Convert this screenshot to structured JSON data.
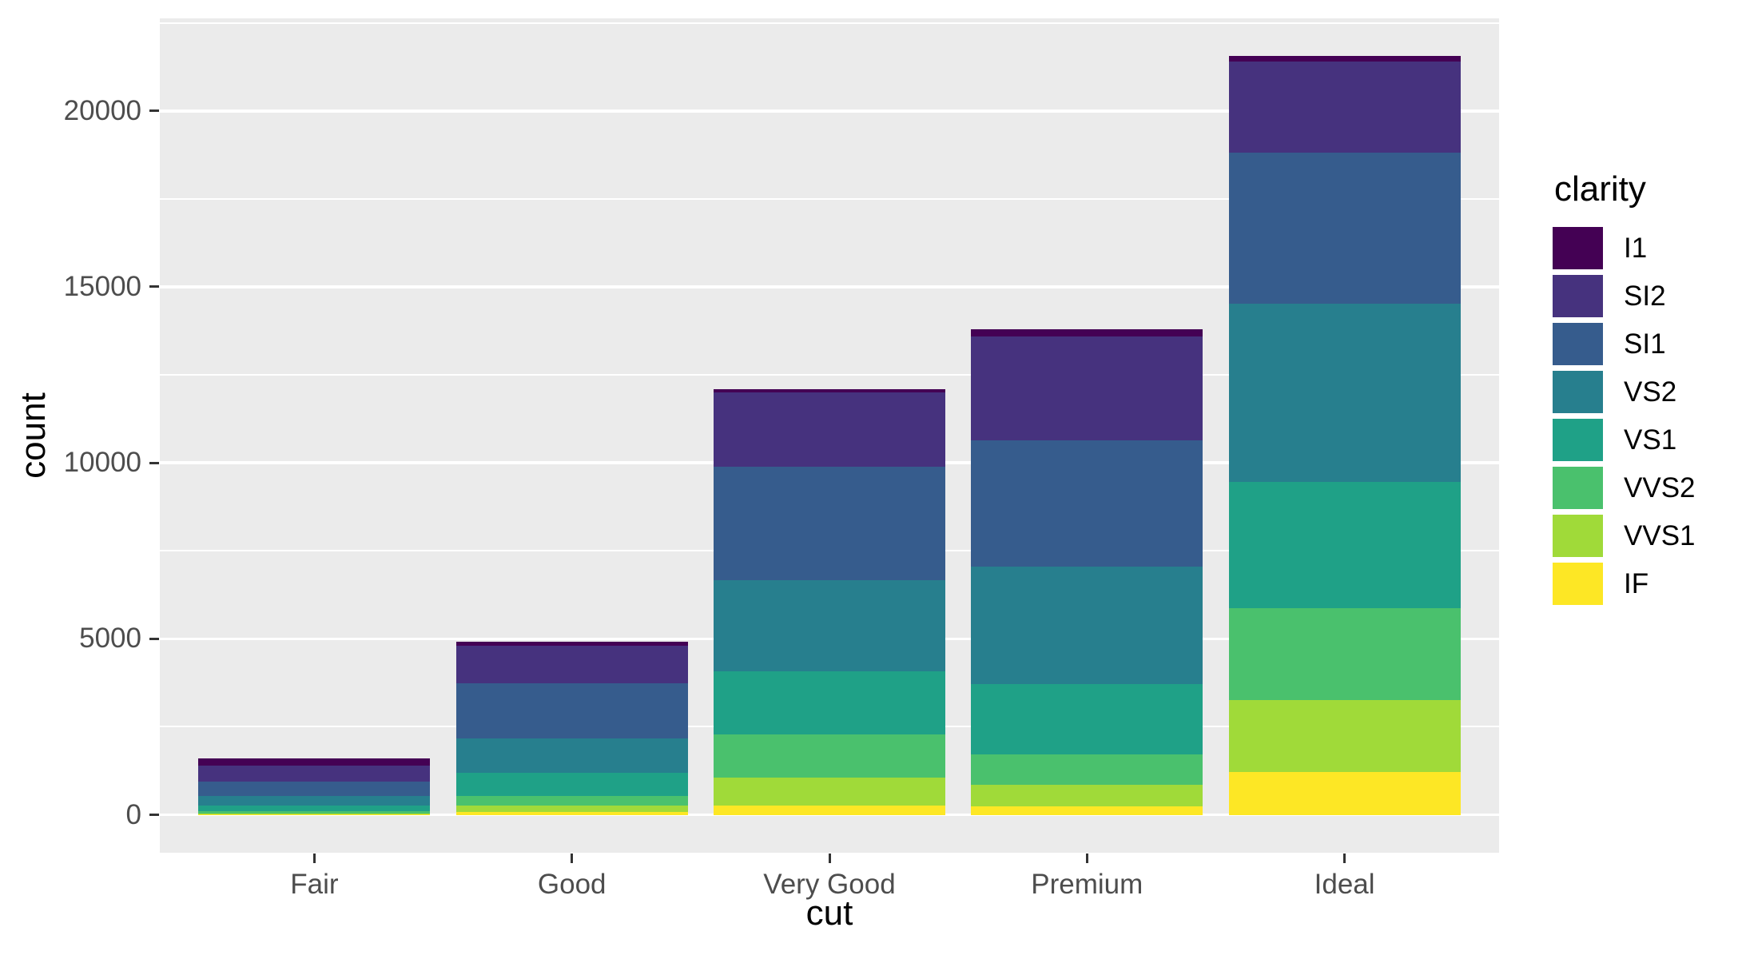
{
  "chart_data": {
    "type": "bar",
    "stacked": true,
    "xlabel": "cut",
    "ylabel": "count",
    "categories": [
      "Fair",
      "Good",
      "Very Good",
      "Premium",
      "Ideal"
    ],
    "series": [
      {
        "name": "I1",
        "color": "#440154",
        "values": [
          210,
          96,
          84,
          205,
          146
        ]
      },
      {
        "name": "SI2",
        "color": "#46327E",
        "values": [
          466,
          1081,
          2100,
          2949,
          2598
        ]
      },
      {
        "name": "SI1",
        "color": "#365C8D",
        "values": [
          408,
          1560,
          3240,
          3575,
          4282
        ]
      },
      {
        "name": "VS2",
        "color": "#277F8E",
        "values": [
          261,
          978,
          2591,
          3357,
          5071
        ]
      },
      {
        "name": "VS1",
        "color": "#1FA187",
        "values": [
          170,
          648,
          1775,
          1989,
          3589
        ]
      },
      {
        "name": "VVS2",
        "color": "#4AC16D",
        "values": [
          69,
          286,
          1235,
          870,
          2606
        ]
      },
      {
        "name": "VVS1",
        "color": "#A0DA39",
        "values": [
          17,
          186,
          789,
          616,
          2047
        ]
      },
      {
        "name": "IF",
        "color": "#FDE725",
        "values": [
          9,
          71,
          268,
          230,
          1212
        ]
      }
    ],
    "stack_order_top_to_bottom": [
      "I1",
      "SI2",
      "SI1",
      "VS2",
      "VS1",
      "VVS2",
      "VVS1",
      "IF"
    ],
    "totals": [
      1610,
      4906,
      12082,
      13791,
      21551
    ],
    "y_major_ticks": [
      0,
      5000,
      10000,
      15000,
      20000
    ],
    "y_major_tick_labels": [
      "0",
      "5000",
      "10000",
      "15000",
      "20000"
    ],
    "y_minor_ticks": [
      2500,
      7500,
      12500,
      17500,
      22500
    ],
    "ylim_display": [
      -1077.55,
      22628.55
    ],
    "bar_rel_width": 0.9,
    "grid": true,
    "legend_title": "clarity",
    "legend_position": "right"
  },
  "colors": {
    "figure_background": "#FFFFFF",
    "panel_background": "#EBEBEB",
    "grid_color": "#FFFFFF",
    "tick_mark_color": "#333333",
    "tick_label_color": "#4D4D4D",
    "title_color": "#000000"
  }
}
